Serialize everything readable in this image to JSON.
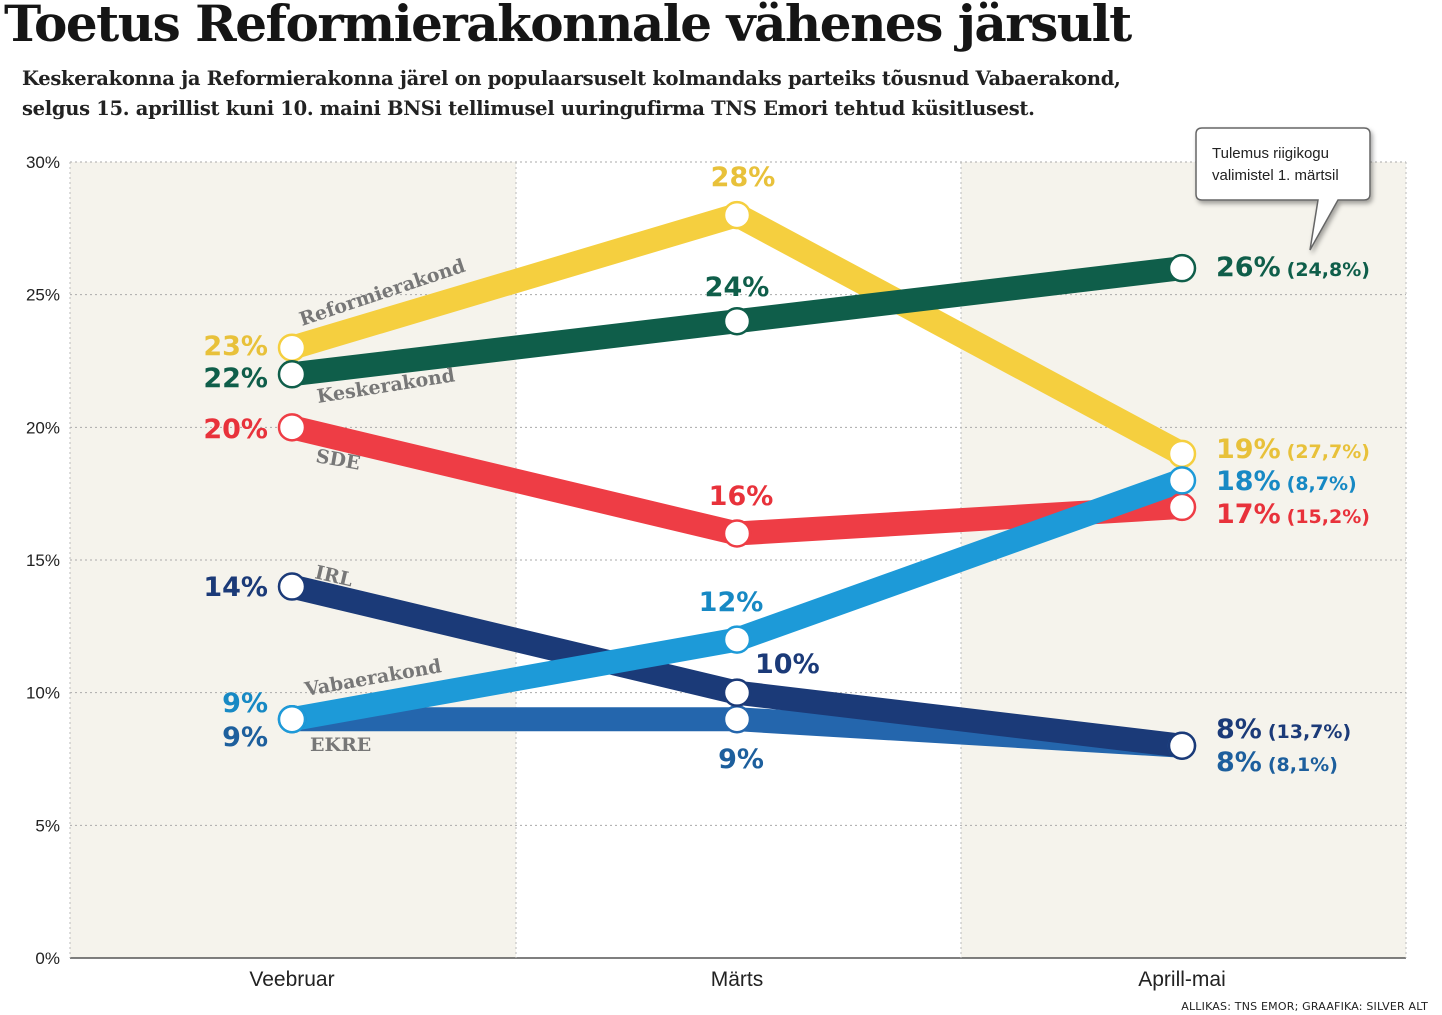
{
  "headline": "Toetus Reformierakonnale vähenes järsult",
  "subtitle": "Keskerakonna ja Reformierakonna järel on populaarsuselt kolmandaks parteiks tõusnud Vabaerakond, selgus 15. aprillist kuni 10. maini  BNSi tellimusel uuringufirma TNS Emori tehtud küsitlusest.",
  "source": "ALLIKAS: TNS EMOR; GRAAFIKA: SILVER ALT",
  "callout": {
    "line1": "Tulemus riigikogu",
    "line2": "valimistel 1. märtsil"
  },
  "chart_data": {
    "type": "line",
    "title": "Toetus Reformierakonnale vähenes järsult",
    "xlabel": "",
    "ylabel": "",
    "categories": [
      "Veebruar",
      "Märts",
      "Aprill-mai"
    ],
    "ylim": [
      0,
      30
    ],
    "yticks": [
      0,
      5,
      10,
      15,
      20,
      25,
      30
    ],
    "ytick_labels": [
      "0%",
      "5%",
      "10%",
      "15%",
      "20%",
      "25%",
      "30%"
    ],
    "grid": true,
    "series": [
      {
        "name": "Reformierakond",
        "color": "#f5cf3f",
        "labelColor": "#e8c13a",
        "values": [
          23,
          28,
          19
        ],
        "valueLabels": [
          "23%",
          "28%",
          "19%"
        ],
        "electionResult": "(27,7%)"
      },
      {
        "name": "Keskerakond",
        "color": "#0f5e4a",
        "labelColor": "#0f5e4a",
        "values": [
          22,
          24,
          26
        ],
        "valueLabels": [
          "22%",
          "24%",
          "26%"
        ],
        "electionResult": "(24,8%)"
      },
      {
        "name": "SDE",
        "color": "#ee3d45",
        "labelColor": "#e8323b",
        "values": [
          20,
          16,
          17
        ],
        "valueLabels": [
          "20%",
          "16%",
          "17%"
        ],
        "electionResult": "(15,2%)"
      },
      {
        "name": "IRL",
        "color": "#1b3a78",
        "labelColor": "#1b3a78",
        "values": [
          14,
          10,
          8
        ],
        "valueLabels": [
          "14%",
          "10%",
          "8%"
        ],
        "electionResult": "(13,7%)"
      },
      {
        "name": "EKRE",
        "color": "#2466ad",
        "labelColor": "#1d5f9d",
        "values": [
          9,
          9,
          8
        ],
        "valueLabels": [
          "9%",
          "9%",
          "8%"
        ],
        "electionResult": "(8,1%)"
      },
      {
        "name": "Vabaerakond",
        "color": "#1d9ad8",
        "labelColor": "#1789c4",
        "values": [
          9,
          12,
          18
        ],
        "valueLabels": [
          "9%",
          "12%",
          "18%"
        ],
        "electionResult": "(8,7%)"
      }
    ]
  }
}
